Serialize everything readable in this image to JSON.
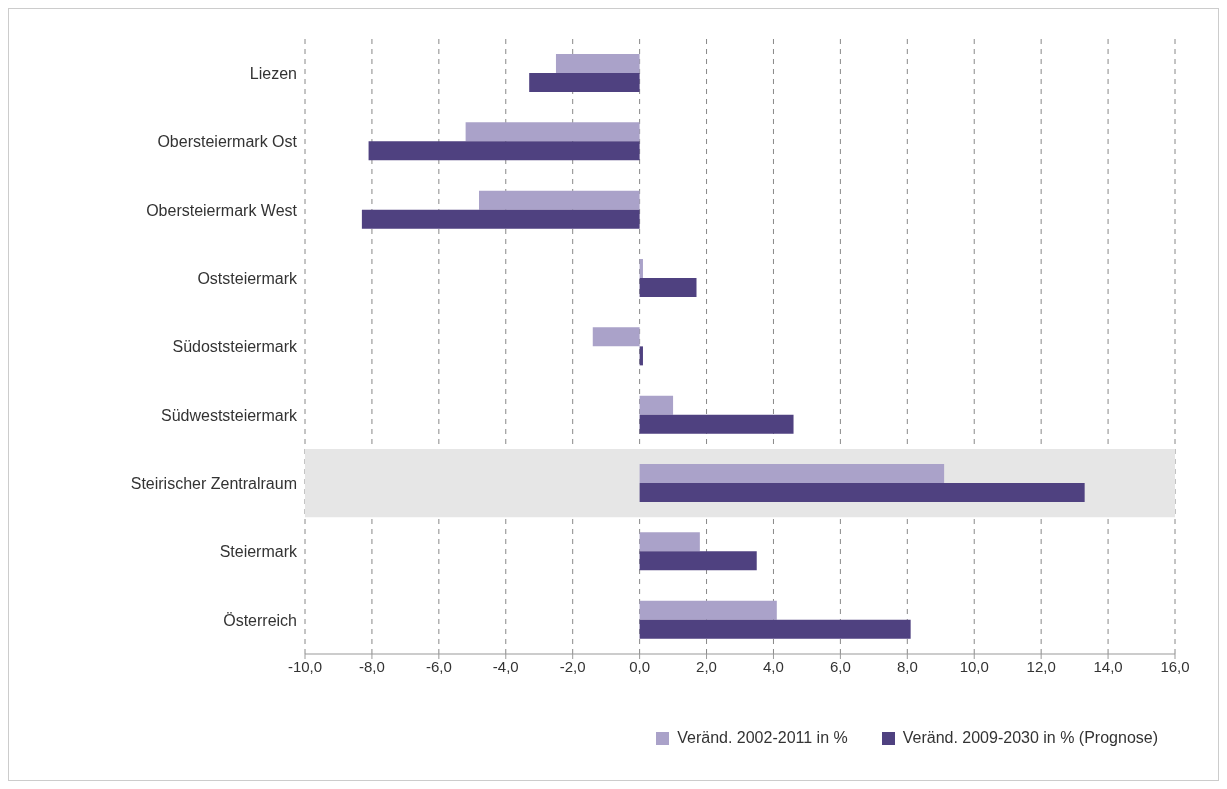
{
  "chart_data": {
    "type": "bar",
    "orientation": "horizontal",
    "categories": [
      "Liezen",
      "Obersteiermark Ost",
      "Obersteiermark West",
      "Oststeiermark",
      "Südoststeiermark",
      "Südweststeiermark",
      "Steirischer Zentralraum",
      "Steiermark",
      "Österreich"
    ],
    "series": [
      {
        "name": "Veränd. 2002-2011 in %",
        "color": "#aaa2c9",
        "values": [
          -2.5,
          -5.2,
          -4.8,
          0.1,
          -1.4,
          1.0,
          9.1,
          1.8,
          4.1
        ]
      },
      {
        "name": "Veränd. 2009-2030 in % (Prognose)",
        "color": "#4f4180",
        "values": [
          -3.3,
          -8.1,
          -8.3,
          1.7,
          0.1,
          4.6,
          13.3,
          3.5,
          8.1
        ]
      }
    ],
    "xlim": [
      -10,
      16
    ],
    "xticks": [
      {
        "value": -10,
        "label": "-10,0"
      },
      {
        "value": -8,
        "label": "-8,0"
      },
      {
        "value": -6,
        "label": "-6,0"
      },
      {
        "value": -4,
        "label": "-4,0"
      },
      {
        "value": -2,
        "label": "-2,0"
      },
      {
        "value": 0,
        "label": "0,0"
      },
      {
        "value": 2,
        "label": "2,0"
      },
      {
        "value": 4,
        "label": "4,0"
      },
      {
        "value": 6,
        "label": "6,0"
      },
      {
        "value": 8,
        "label": "8,0"
      },
      {
        "value": 10,
        "label": "10,0"
      },
      {
        "value": 12,
        "label": "12,0"
      },
      {
        "value": 14,
        "label": "14,0"
      },
      {
        "value": 16,
        "label": "16,0"
      }
    ],
    "bands": [
      {
        "axis": "y",
        "from": "Steirischer Zentralraum",
        "to": "Steirischer Zentralraum",
        "color": "#e6e6e6"
      }
    ],
    "grid": "x",
    "legend": "bottom right"
  }
}
